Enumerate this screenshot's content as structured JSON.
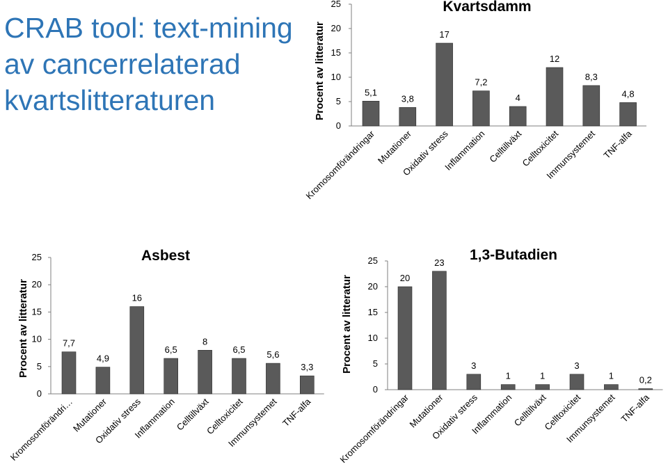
{
  "slide": {
    "title_lines": [
      "CRAB tool: text-mining",
      "av cancerrelaterad",
      "kvartslitteraturen"
    ]
  },
  "colors": {
    "bar": "#5a5a5a",
    "bar_edge": "#2b2b2b",
    "axis": "#7f7f7f",
    "title": "#2e75b6"
  },
  "chart_data": [
    {
      "type": "bar",
      "title": "Kvartsdamm",
      "ylabel": "Procent av litteratur",
      "ylim": [
        0,
        25
      ],
      "yticks": [
        "0",
        "5",
        "10",
        "15",
        "20",
        "25"
      ],
      "categories": [
        "Kromosomförändringar",
        "Mutationer",
        "Oxidativ stress",
        "Inflammation",
        "Celltillväxt",
        "Celltoxicitet",
        "Immunsystemet",
        "TNF-alfa"
      ],
      "values": [
        5.1,
        3.8,
        17,
        7.2,
        4,
        12,
        8.3,
        4.8
      ],
      "labels": [
        "5,1",
        "3,8",
        "17",
        "7,2",
        "4",
        "12",
        "8,3",
        "4,8"
      ],
      "grid": false,
      "legend": "none"
    },
    {
      "type": "bar",
      "title": "Asbest",
      "ylabel": "Procent av litteratur",
      "ylim": [
        0,
        25
      ],
      "yticks": [
        "0",
        "5",
        "10",
        "15",
        "20",
        "25"
      ],
      "categories": [
        "Kromosomförändri…",
        "Mutationer",
        "Oxidativ stress",
        "Inflammation",
        "Celltillväxt",
        "Celltoxicitet",
        "Immunsystemet",
        "TNF-alfa"
      ],
      "values": [
        7.7,
        4.9,
        16,
        6.5,
        8,
        6.5,
        5.6,
        3.3
      ],
      "labels": [
        "7,7",
        "4,9",
        "16",
        "6,5",
        "8",
        "6,5",
        "5,6",
        "3,3"
      ],
      "grid": false,
      "legend": "none"
    },
    {
      "type": "bar",
      "title": "1,3-Butadien",
      "ylabel": "Procent av litteratur",
      "ylim": [
        0,
        25
      ],
      "yticks": [
        "0",
        "5",
        "10",
        "15",
        "20",
        "25"
      ],
      "categories": [
        "Kromosomförändringar",
        "Mutationer",
        "Oxidativ stress",
        "Inflammation",
        "Celltillväxt",
        "Celltoxicitet",
        "Immunsystemet",
        "TNF-alfa"
      ],
      "values": [
        20,
        23,
        3,
        1,
        1,
        3,
        1,
        0.2
      ],
      "labels": [
        "20",
        "23",
        "3",
        "1",
        "1",
        "3",
        "1",
        "0,2"
      ],
      "grid": false,
      "legend": "none"
    }
  ]
}
